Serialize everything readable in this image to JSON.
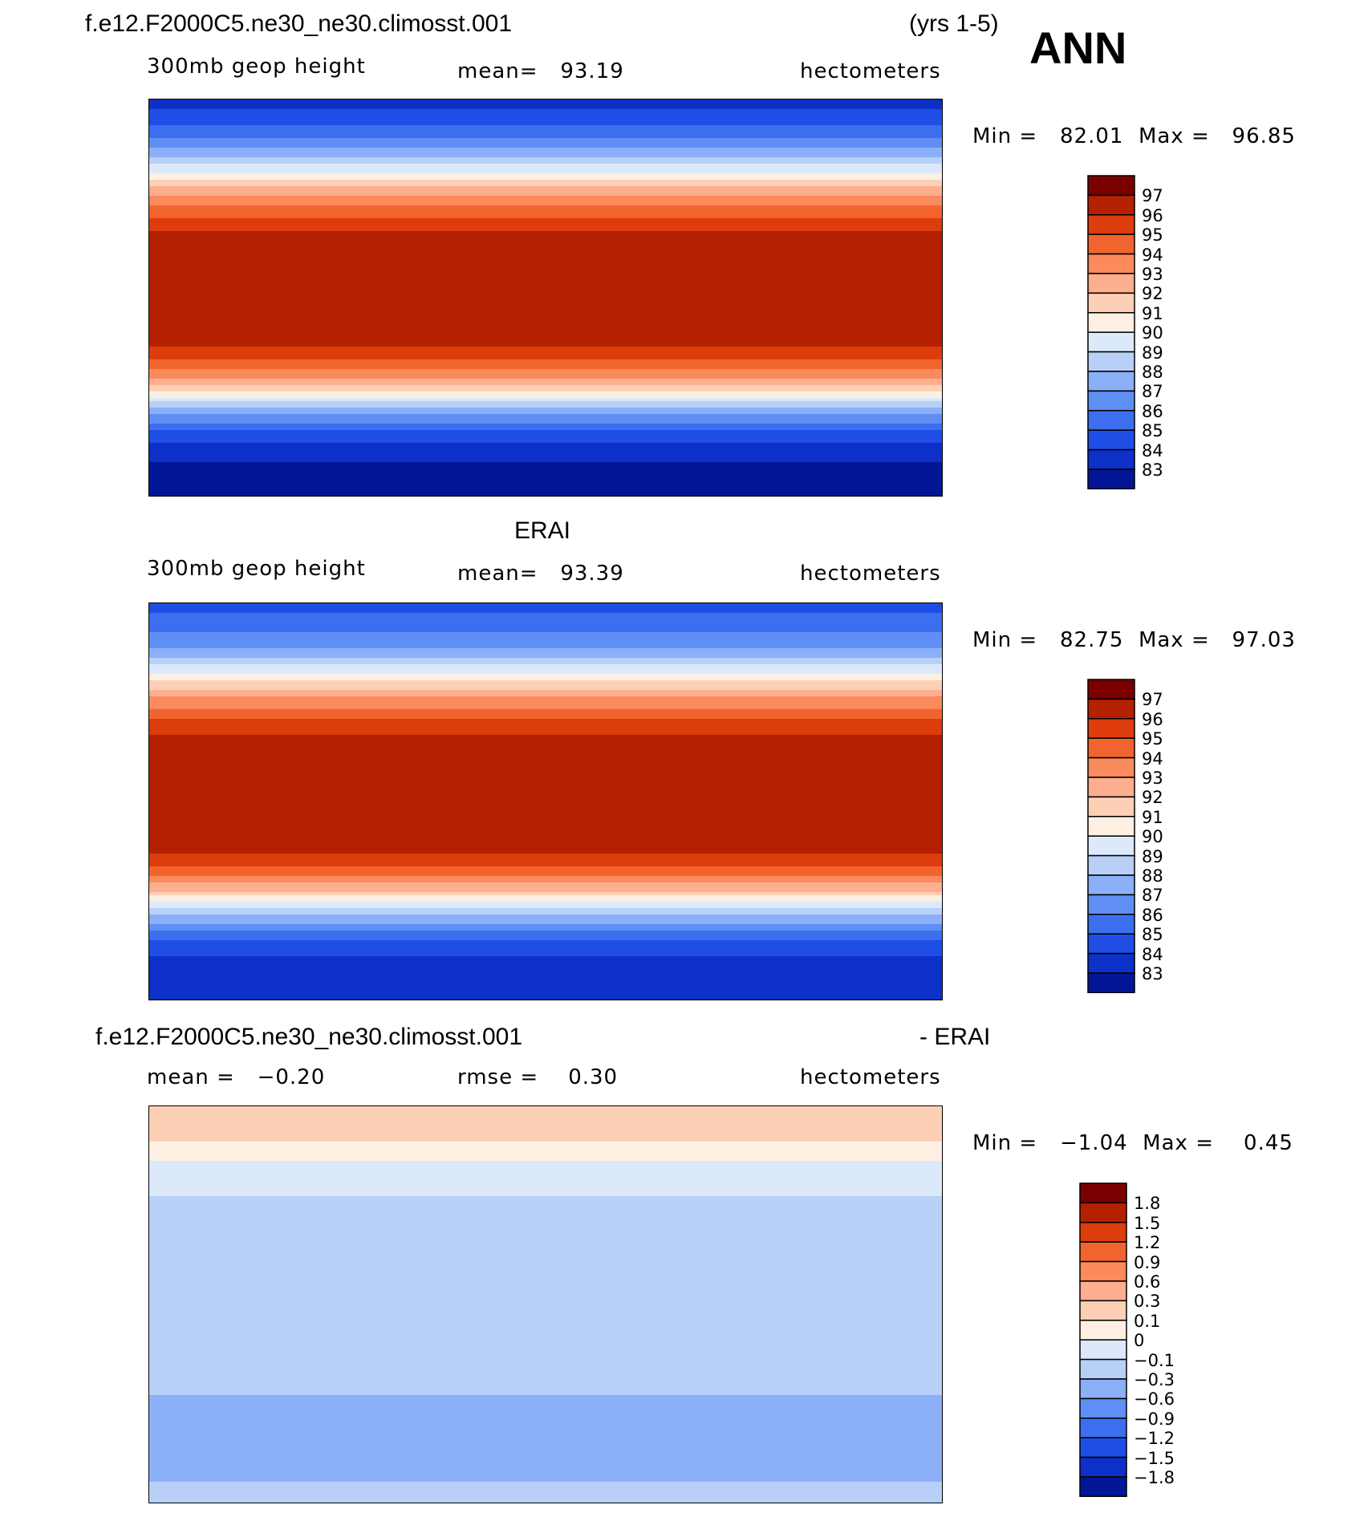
{
  "header": {
    "case_name": "f.e12.F2000C5.ne30_ne30.climosst.001",
    "years": "(yrs 1-5)",
    "season": "ANN"
  },
  "panel_model": {
    "variable": "300mb geop height",
    "mean_text": "mean=   93.19",
    "units": "hectometers",
    "minmax_text": "Min =   82.01  Max =   96.85"
  },
  "panel_obs": {
    "title": "ERAI",
    "variable": "300mb geop height",
    "mean_text": "mean=   93.39",
    "units": "hectometers",
    "minmax_text": "Min =   82.75  Max =   97.03"
  },
  "panel_diff": {
    "title_left": "f.e12.F2000C5.ne30_ne30.climosst.001",
    "title_right": "- ERAI",
    "mean_text": "mean =   −0.20",
    "rmse_text": "rmse =    0.30",
    "units": "hectometers",
    "minmax_text": "Min =   −1.04  Max =    0.45"
  },
  "chart_data": [
    {
      "type": "heatmap",
      "title": "300mb geop height",
      "units": "hectometers",
      "mean": 93.19,
      "min": 82.01,
      "max": 96.85,
      "levels": [
        "97",
        "96",
        "95",
        "94",
        "93",
        "92",
        "91",
        "90",
        "89",
        "88",
        "87",
        "86",
        "85",
        "84",
        "83"
      ],
      "colors": [
        "#7a0000",
        "#b42100",
        "#dd3c0c",
        "#f2642e",
        "#fb8a5c",
        "#fcae8e",
        "#fdd0b6",
        "#fdf0e2",
        "#dce9fa",
        "#b8d0f8",
        "#8cb0f8",
        "#5f8ef5",
        "#3c6ef0",
        "#1e4ee6",
        "#0c30c8",
        "#021696"
      ],
      "zonal_profile": [
        [
          90,
          83.4
        ],
        [
          80,
          84.8
        ],
        [
          70,
          86.5
        ],
        [
          60,
          89.2
        ],
        [
          50,
          92.2
        ],
        [
          40,
          94.5
        ],
        [
          30,
          96.0
        ],
        [
          20,
          96.6
        ],
        [
          10,
          96.8
        ],
        [
          0,
          96.8
        ],
        [
          -10,
          96.7
        ],
        [
          -20,
          96.3
        ],
        [
          -30,
          94.6
        ],
        [
          -40,
          91.8
        ],
        [
          -50,
          87.8
        ],
        [
          -60,
          84.8
        ],
        [
          -70,
          83.3
        ],
        [
          -80,
          82.6
        ],
        [
          -90,
          82.1
        ]
      ]
    },
    {
      "type": "heatmap",
      "title": "300mb geop height",
      "units": "hectometers",
      "mean": 93.39,
      "min": 82.75,
      "max": 97.03,
      "levels": [
        "97",
        "96",
        "95",
        "94",
        "93",
        "92",
        "91",
        "90",
        "89",
        "88",
        "87",
        "86",
        "85",
        "84",
        "83"
      ],
      "colors": [
        "#7a0000",
        "#b42100",
        "#dd3c0c",
        "#f2642e",
        "#fb8a5c",
        "#fcae8e",
        "#fdd0b6",
        "#fdf0e2",
        "#dce9fa",
        "#b8d0f8",
        "#8cb0f8",
        "#5f8ef5",
        "#3c6ef0",
        "#1e4ee6",
        "#0c30c8",
        "#021696"
      ],
      "zonal_profile": [
        [
          90,
          84.6
        ],
        [
          80,
          85.6
        ],
        [
          70,
          87.0
        ],
        [
          60,
          89.5
        ],
        [
          50,
          92.4
        ],
        [
          40,
          94.6
        ],
        [
          30,
          96.0
        ],
        [
          20,
          96.7
        ],
        [
          10,
          96.9
        ],
        [
          0,
          96.9
        ],
        [
          -10,
          96.8
        ],
        [
          -20,
          96.4
        ],
        [
          -30,
          94.8
        ],
        [
          -40,
          92.0
        ],
        [
          -50,
          88.3
        ],
        [
          -60,
          85.4
        ],
        [
          -70,
          84.0
        ],
        [
          -80,
          83.4
        ],
        [
          -90,
          83.0
        ]
      ]
    },
    {
      "type": "heatmap",
      "title": "f.e12.F2000C5.ne30_ne30.climosst.001 - ERAI",
      "units": "hectometers",
      "mean": -0.2,
      "rmse": 0.3,
      "min": -1.04,
      "max": 0.45,
      "levels": [
        "1.8",
        "1.5",
        "1.2",
        "0.9",
        "0.6",
        "0.3",
        "0.1",
        "0",
        "−0.1",
        "−0.3",
        "−0.6",
        "−0.9",
        "−1.2",
        "−1.5",
        "−1.8"
      ],
      "colors": [
        "#7a0000",
        "#b42100",
        "#dd3c0c",
        "#f2642e",
        "#fb8a5c",
        "#fcae8e",
        "#fdd0b6",
        "#fdf0e2",
        "#dce9fa",
        "#b8d0f8",
        "#8cb0f8",
        "#5f8ef5",
        "#3c6ef0",
        "#1e4ee6",
        "#0c30c8",
        "#021696"
      ],
      "zonal_profile": [
        [
          90,
          0.15
        ],
        [
          80,
          0.2
        ],
        [
          70,
          0.05
        ],
        [
          60,
          -0.05
        ],
        [
          50,
          -0.1
        ],
        [
          40,
          -0.2
        ],
        [
          30,
          -0.2
        ],
        [
          20,
          -0.2
        ],
        [
          10,
          -0.2
        ],
        [
          0,
          -0.2
        ],
        [
          -10,
          -0.2
        ],
        [
          -20,
          -0.2
        ],
        [
          -30,
          -0.25
        ],
        [
          -40,
          -0.3
        ],
        [
          -50,
          -0.4
        ],
        [
          -60,
          -0.5
        ],
        [
          -70,
          -0.45
        ],
        [
          -80,
          -0.3
        ],
        [
          -90,
          -0.25
        ]
      ]
    }
  ]
}
